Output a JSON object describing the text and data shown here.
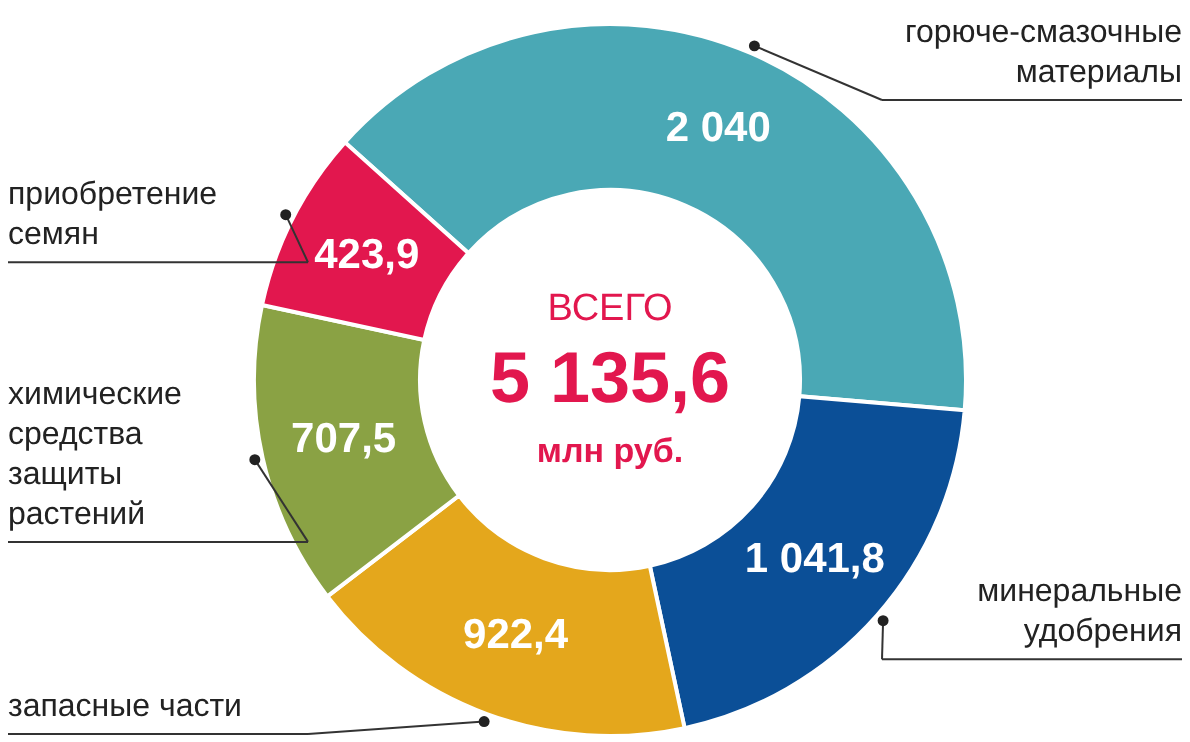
{
  "chart_data": {
    "type": "donut",
    "categories": [
      "горюче-смазочные материалы",
      "минеральные удобрения",
      "запасные части",
      "химические средства защиты растений",
      "приобретение семян"
    ],
    "values": [
      2040,
      1041.8,
      922.4,
      707.5,
      423.9
    ],
    "colors": [
      "#4aa8b5",
      "#0b4f97",
      "#e4a71c",
      "#8aa244",
      "#e2174e"
    ],
    "value_labels": [
      "2 040",
      "1 041,8",
      "922,4",
      "707,5",
      "423,9"
    ],
    "annotations": [
      "ВСЕГО",
      "5 135,6",
      "млн руб."
    ]
  }
}
